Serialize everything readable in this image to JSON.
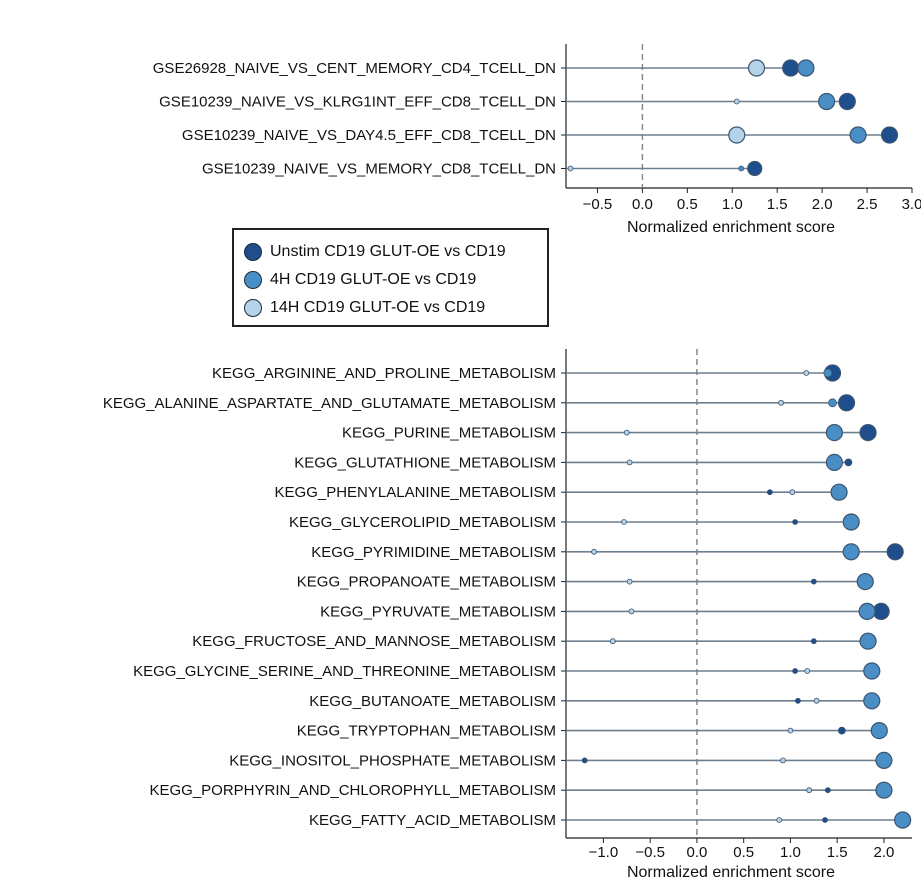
{
  "legend": {
    "items": [
      {
        "label": "Unstim CD19 GLUT-OE vs CD19",
        "color": "#1f4e8c"
      },
      {
        "label": "4H CD19 GLUT-OE vs CD19",
        "color": "#4a8ec6"
      },
      {
        "label": "14H CD19 GLUT-OE vs CD19",
        "color": "#b4d2e8"
      }
    ]
  },
  "chart_data": [
    {
      "type": "scatter",
      "xlabel": "Normalized enrichment score",
      "xlim": [
        -0.85,
        3.0
      ],
      "xticks": [
        "−0.5",
        "0.0",
        "0.5",
        "1.0",
        "1.5",
        "2.0",
        "2.5",
        "3.0"
      ],
      "xtick_values": [
        -0.5,
        0.0,
        0.5,
        1.0,
        1.5,
        2.0,
        2.5,
        3.0
      ],
      "vline": 0,
      "categories": [
        "GSE26928_NAIVE_VS_CENT_MEMORY_CD4_TCELL_DN",
        "GSE10239_NAIVE_VS_KLRG1INT_EFF_CD8_TCELL_DN",
        "GSE10239_NAIVE_VS_DAY4.5_EFF_CD8_TCELL_DN",
        "GSE10239_NAIVE_VS_MEMORY_CD8_TCELL_DN"
      ],
      "series": [
        {
          "name": "Unstim CD19 GLUT-OE vs CD19",
          "values": [
            1.65,
            2.28,
            2.75,
            1.25
          ],
          "sizes": [
            16,
            16,
            16,
            14
          ]
        },
        {
          "name": "4H CD19 GLUT-OE vs CD19",
          "values": [
            1.82,
            2.05,
            2.4,
            1.1
          ],
          "sizes": [
            16,
            16,
            16,
            5
          ]
        },
        {
          "name": "14H CD19 GLUT-OE vs CD19",
          "values": [
            1.27,
            1.05,
            1.05,
            -0.8
          ],
          "sizes": [
            16,
            5,
            16,
            5
          ]
        }
      ]
    },
    {
      "type": "scatter",
      "xlabel": "Normalized enrichment score",
      "xlim": [
        -1.4,
        2.3
      ],
      "xticks": [
        "−1.0",
        "−0.5",
        "0.0",
        "0.5",
        "1.0",
        "1.5",
        "2.0"
      ],
      "xtick_values": [
        -1.0,
        -0.5,
        0.0,
        0.5,
        1.0,
        1.5,
        2.0
      ],
      "vline": 0,
      "categories": [
        "KEGG_ARGININE_AND_PROLINE_METABOLISM",
        "KEGG_ALANINE_ASPARTATE_AND_GLUTAMATE_METABOLISM",
        "KEGG_PURINE_METABOLISM",
        "KEGG_GLUTATHIONE_METABOLISM",
        "KEGG_PHENYLALANINE_METABOLISM",
        "KEGG_GLYCEROLIPID_METABOLISM",
        "KEGG_PYRIMIDINE_METABOLISM",
        "KEGG_PROPANOATE_METABOLISM",
        "KEGG_PYRUVATE_METABOLISM",
        "KEGG_FRUCTOSE_AND_MANNOSE_METABOLISM",
        "KEGG_GLYCINE_SERINE_AND_THREONINE_METABOLISM",
        "KEGG_BUTANOATE_METABOLISM",
        "KEGG_TRYPTOPHAN_METABOLISM",
        "KEGG_INOSITOL_PHOSPHATE_METABOLISM",
        "KEGG_PORPHYRIN_AND_CHLOROPHYLL_METABOLISM",
        "KEGG_FATTY_ACID_METABOLISM"
      ],
      "series": [
        {
          "name": "Unstim CD19 GLUT-OE vs CD19",
          "values": [
            1.45,
            1.6,
            1.83,
            1.62,
            0.78,
            1.05,
            2.12,
            1.25,
            1.97,
            1.25,
            1.05,
            1.08,
            1.55,
            -1.2,
            1.4,
            1.37
          ],
          "sizes": [
            16,
            16,
            16,
            7,
            5,
            5,
            16,
            5,
            16,
            5,
            5,
            5,
            7,
            5,
            5,
            5
          ]
        },
        {
          "name": "4H CD19 GLUT-OE vs CD19",
          "values": [
            1.4,
            1.45,
            1.47,
            1.47,
            1.52,
            1.65,
            1.65,
            1.8,
            1.82,
            1.83,
            1.87,
            1.87,
            1.95,
            2.0,
            2.0,
            2.2
          ],
          "sizes": [
            8,
            8,
            16,
            16,
            16,
            16,
            16,
            16,
            16,
            16,
            16,
            16,
            16,
            16,
            16,
            16
          ]
        },
        {
          "name": "14H CD19 GLUT-OE vs CD19",
          "values": [
            1.17,
            0.9,
            -0.75,
            -0.72,
            1.02,
            -0.78,
            -1.1,
            -0.72,
            -0.7,
            -0.9,
            1.18,
            1.28,
            1.0,
            0.92,
            1.2,
            0.88
          ],
          "sizes": [
            5,
            5,
            5,
            5,
            5,
            5,
            5,
            5,
            5,
            5,
            5,
            5,
            5,
            5,
            5,
            5
          ]
        }
      ]
    }
  ]
}
